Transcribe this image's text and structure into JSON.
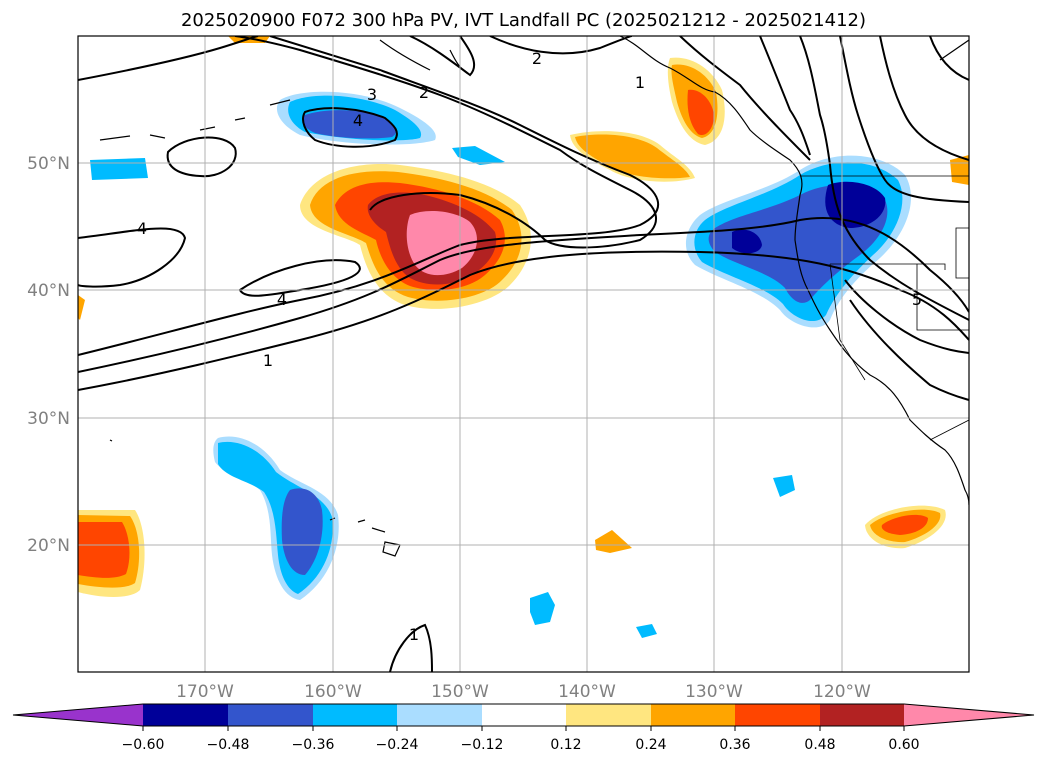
{
  "title": "2025020900 F072 300 hPa PV, IVT Landfall PC (2025021212 - 2025021412)",
  "map": {
    "lon_range": [
      -180,
      -110
    ],
    "lat_range": [
      10,
      60
    ],
    "longitude_ticks": [
      "170°W",
      "160°W",
      "150°W",
      "140°W",
      "130°W",
      "120°W"
    ],
    "latitude_ticks": [
      "50°N",
      "40°N",
      "30°N",
      "20°N"
    ],
    "grid": true,
    "contour_labels": [
      "1",
      "2",
      "3",
      "4",
      "4",
      "4",
      "5",
      "1",
      "2",
      "1"
    ]
  },
  "colorbar": {
    "ticks": [
      "−0.60",
      "−0.48",
      "−0.36",
      "−0.24",
      "−0.12",
      "0.12",
      "0.24",
      "0.36",
      "0.48",
      "0.60"
    ],
    "colors": [
      "#9933cc",
      "#000099",
      "#3355cc",
      "#00bbff",
      "#aaddff",
      "#ffffff",
      "#ffe680",
      "#ffa500",
      "#ff4500",
      "#b22222",
      "#ff88aa"
    ],
    "extend": "both"
  }
}
